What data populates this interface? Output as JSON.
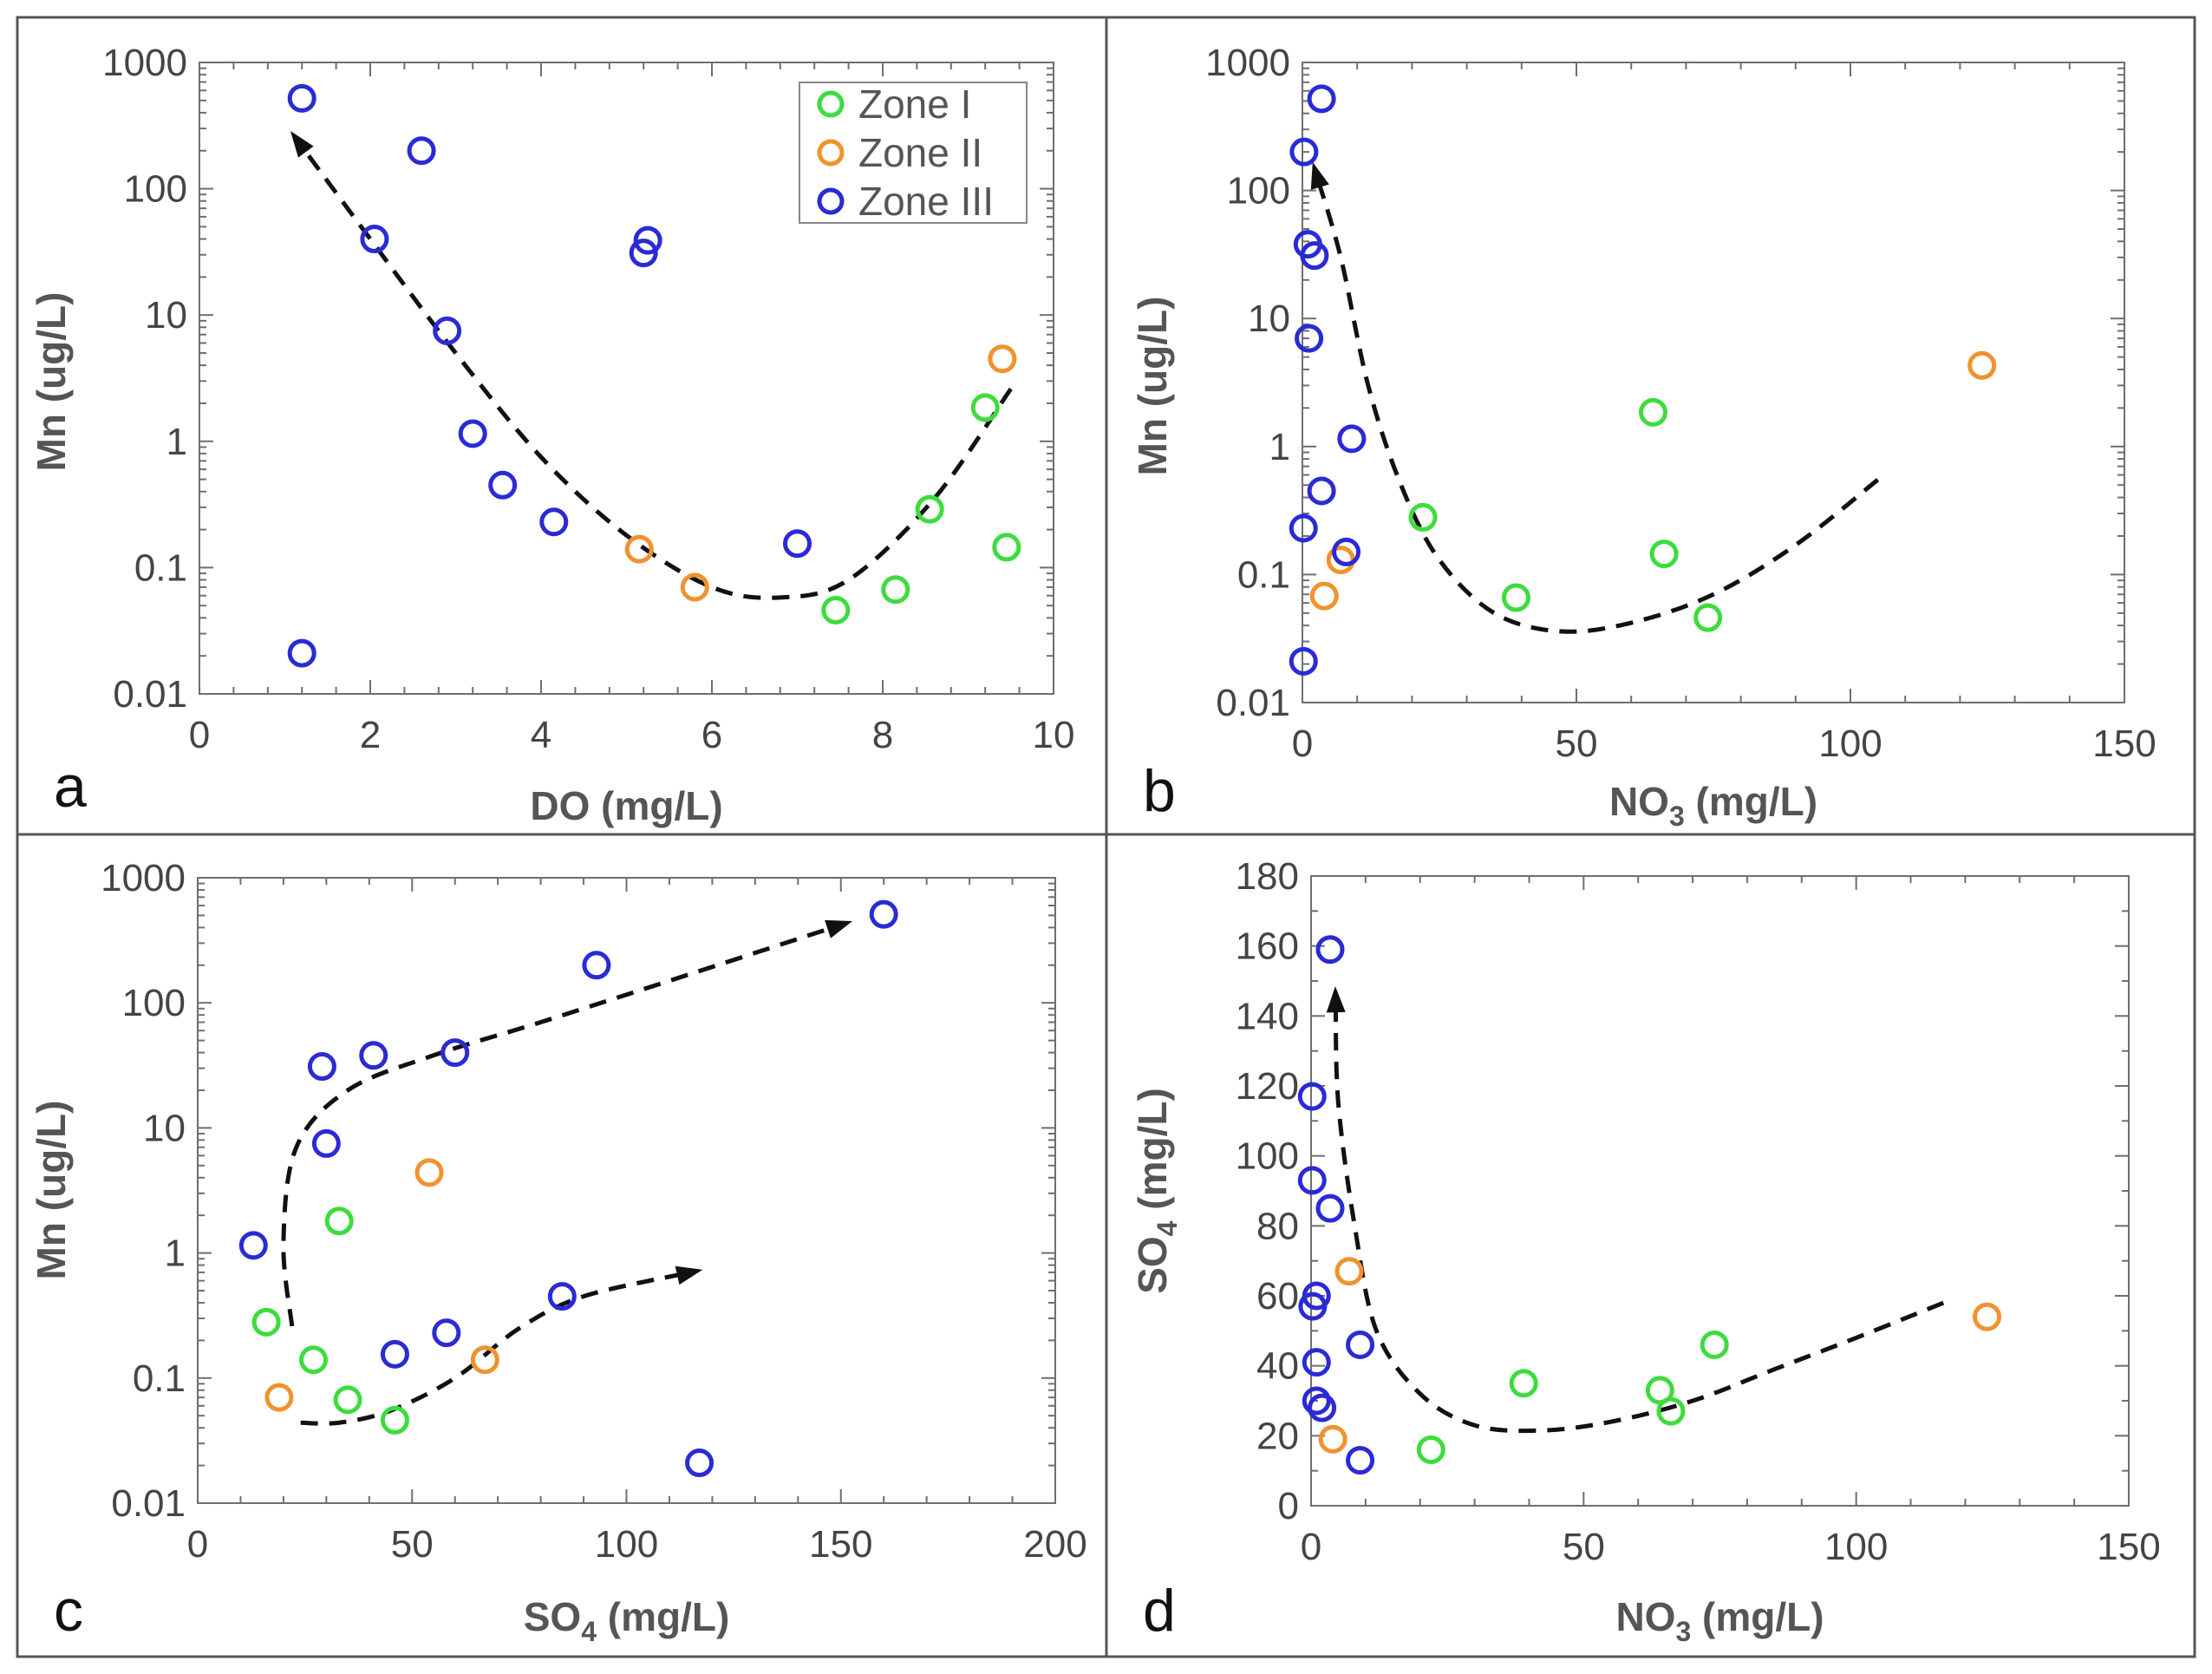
{
  "zone_colors": {
    "Zone I": "#3ddc3d",
    "Zone II": "#f0922e",
    "Zone III": "#2a2ad6"
  },
  "legend": [
    "Zone I",
    "Zone II",
    "Zone III"
  ],
  "chart_data": [
    {
      "panel": "a",
      "type": "scatter",
      "xlabel": "DO (mg/L)",
      "ylabel": "Mn (ug/L)",
      "xscale": "linear",
      "yscale": "log",
      "xlim": [
        0,
        10
      ],
      "ylim": [
        0.01,
        1000
      ],
      "xticks": [
        0,
        2,
        4,
        6,
        8,
        10
      ],
      "yticks": [
        0.01,
        0.1,
        1,
        10,
        100,
        1000
      ],
      "ytick_labels": [
        "0.01",
        "0.1",
        "1",
        "10",
        "100",
        "1000"
      ],
      "legend": "top-right",
      "series": [
        {
          "name": "Zone I",
          "points": [
            [
              7.45,
              0.046
            ],
            [
              8.15,
              0.067
            ],
            [
              8.55,
              0.29
            ],
            [
              9.2,
              1.85
            ],
            [
              9.45,
              0.145
            ]
          ]
        },
        {
          "name": "Zone II",
          "points": [
            [
              5.15,
              0.14
            ],
            [
              5.8,
              0.07
            ],
            [
              9.4,
              4.5
            ]
          ]
        },
        {
          "name": "Zone III",
          "points": [
            [
              1.2,
              520
            ],
            [
              2.6,
              200
            ],
            [
              2.05,
              40
            ],
            [
              5.25,
              39
            ],
            [
              5.2,
              31
            ],
            [
              2.9,
              7.5
            ],
            [
              3.2,
              1.15
            ],
            [
              3.55,
              0.45
            ],
            [
              4.15,
              0.23
            ],
            [
              7.0,
              0.155
            ],
            [
              1.2,
              0.021
            ]
          ]
        }
      ],
      "trend": {
        "points": [
          [
            9.5,
            2.6
          ],
          [
            8.6,
            0.35
          ],
          [
            7.6,
            0.08
          ],
          [
            6.8,
            0.058
          ],
          [
            6.0,
            0.07
          ],
          [
            5.0,
            0.18
          ],
          [
            4.0,
            0.75
          ],
          [
            3.0,
            5
          ],
          [
            2.0,
            40
          ],
          [
            1.15,
            240
          ]
        ],
        "arrow_at": "end"
      }
    },
    {
      "panel": "b",
      "type": "scatter",
      "xlabel": "NO",
      "xlabel_sub": "3",
      "xlabel_unit": " (mg/L)",
      "ylabel": "Mn (ug/L)",
      "xscale": "linear",
      "yscale": "log",
      "xlim": [
        0,
        150
      ],
      "ylim": [
        0.01,
        1000
      ],
      "xticks": [
        0,
        50,
        100,
        150
      ],
      "yticks": [
        0.01,
        0.1,
        1,
        10,
        100,
        1000
      ],
      "ytick_labels": [
        "0.01",
        "0.1",
        "1",
        "10",
        "100",
        "1000"
      ],
      "series": [
        {
          "name": "Zone I",
          "points": [
            [
              22,
              0.28
            ],
            [
              39,
              0.066
            ],
            [
              64,
              1.85
            ],
            [
              66,
              0.145
            ],
            [
              74,
              0.046
            ]
          ]
        },
        {
          "name": "Zone II",
          "points": [
            [
              4,
              0.068
            ],
            [
              7,
              0.13
            ],
            [
              124,
              4.3
            ]
          ]
        },
        {
          "name": "Zone III",
          "points": [
            [
              3.5,
              520
            ],
            [
              0.3,
              200
            ],
            [
              1,
              38
            ],
            [
              2.2,
              31
            ],
            [
              1.2,
              7
            ],
            [
              9,
              1.15
            ],
            [
              3.5,
              0.45
            ],
            [
              0.2,
              0.23
            ],
            [
              8,
              0.15
            ],
            [
              0.2,
              0.021
            ]
          ]
        }
      ],
      "trend": {
        "points": [
          [
            105,
            0.55
          ],
          [
            90,
            0.17
          ],
          [
            75,
            0.07
          ],
          [
            60,
            0.042
          ],
          [
            47,
            0.036
          ],
          [
            35,
            0.05
          ],
          [
            25,
            0.13
          ],
          [
            18,
            0.5
          ],
          [
            12,
            3
          ],
          [
            7,
            30
          ],
          [
            2.5,
            135
          ]
        ],
        "arrow_at": "end"
      }
    },
    {
      "panel": "c",
      "type": "scatter",
      "xlabel": "SO",
      "xlabel_sub": "4",
      "xlabel_unit": " (mg/L)",
      "ylabel": "Mn (ug/L)",
      "xscale": "linear",
      "yscale": "log",
      "xlim": [
        0,
        200
      ],
      "ylim": [
        0.01,
        1000
      ],
      "xticks": [
        0,
        50,
        100,
        150,
        200
      ],
      "yticks": [
        0.01,
        0.1,
        1,
        10,
        100,
        1000
      ],
      "ytick_labels": [
        "0.01",
        "0.1",
        "1",
        "10",
        "100",
        "1000"
      ],
      "series": [
        {
          "name": "Zone I",
          "points": [
            [
              16,
              0.28
            ],
            [
              27,
              0.14
            ],
            [
              33,
              1.8
            ],
            [
              35,
              0.067
            ],
            [
              46,
              0.046
            ]
          ]
        },
        {
          "name": "Zone II",
          "points": [
            [
              19,
              0.07
            ],
            [
              54,
              4.4
            ],
            [
              67,
              0.14
            ]
          ]
        },
        {
          "name": "Zone III",
          "points": [
            [
              13,
              1.15
            ],
            [
              29,
              31
            ],
            [
              30,
              7.5
            ],
            [
              41,
              38
            ],
            [
              46,
              0.155
            ],
            [
              58,
              0.23
            ],
            [
              60,
              40
            ],
            [
              85,
              0.45
            ],
            [
              93,
              200
            ],
            [
              117,
              0.021
            ],
            [
              160,
              510
            ]
          ]
        }
      ],
      "trend_upper": {
        "points": [
          [
            22,
            0.26
          ],
          [
            20,
            1.2
          ],
          [
            23,
            7
          ],
          [
            35,
            20
          ],
          [
            55,
            38
          ],
          [
            80,
            70
          ],
          [
            110,
            150
          ],
          [
            150,
            420
          ]
        ],
        "arrow_at": "end"
      },
      "trend_lower": {
        "points": [
          [
            24,
            0.044
          ],
          [
            33,
            0.044
          ],
          [
            45,
            0.055
          ],
          [
            60,
            0.1
          ],
          [
            75,
            0.25
          ],
          [
            90,
            0.45
          ],
          [
            115,
            0.7
          ]
        ],
        "arrow_at": "end"
      }
    },
    {
      "panel": "d",
      "type": "scatter",
      "xlabel": "NO",
      "xlabel_sub": "3",
      "xlabel_unit": " (mg/L)",
      "ylabel": "SO",
      "ylabel_sub": "4",
      "ylabel_unit": " (mg/L)",
      "xscale": "linear",
      "yscale": "linear",
      "xlim": [
        0,
        150
      ],
      "ylim": [
        0,
        180
      ],
      "xticks": [
        0,
        50,
        100,
        150
      ],
      "yticks": [
        0,
        20,
        40,
        60,
        80,
        100,
        120,
        140,
        160,
        180
      ],
      "ytick_labels": [
        "0",
        "20",
        "40",
        "60",
        "80",
        "100",
        "120",
        "140",
        "160",
        "180"
      ],
      "series": [
        {
          "name": "Zone I",
          "points": [
            [
              22,
              16
            ],
            [
              39,
              35
            ],
            [
              64,
              33
            ],
            [
              66,
              27
            ],
            [
              74,
              46
            ]
          ]
        },
        {
          "name": "Zone II",
          "points": [
            [
              4,
              19
            ],
            [
              7,
              67
            ],
            [
              124,
              54
            ]
          ]
        },
        {
          "name": "Zone III",
          "points": [
            [
              3.5,
              159
            ],
            [
              0.2,
              117
            ],
            [
              0.2,
              93
            ],
            [
              3.5,
              85
            ],
            [
              1,
              60
            ],
            [
              0.3,
              57
            ],
            [
              1,
              41
            ],
            [
              1,
              30
            ],
            [
              2,
              28
            ],
            [
              9,
              46
            ],
            [
              9,
              13
            ]
          ]
        }
      ],
      "trend": {
        "points": [
          [
            116,
            58
          ],
          [
            100,
            48
          ],
          [
            85,
            39
          ],
          [
            70,
            30
          ],
          [
            55,
            24
          ],
          [
            42,
            21.5
          ],
          [
            30,
            23
          ],
          [
            20,
            32
          ],
          [
            12,
            50
          ],
          [
            8,
            80
          ],
          [
            5,
            115
          ],
          [
            4.5,
            145
          ]
        ],
        "arrow_at": "end"
      }
    }
  ]
}
